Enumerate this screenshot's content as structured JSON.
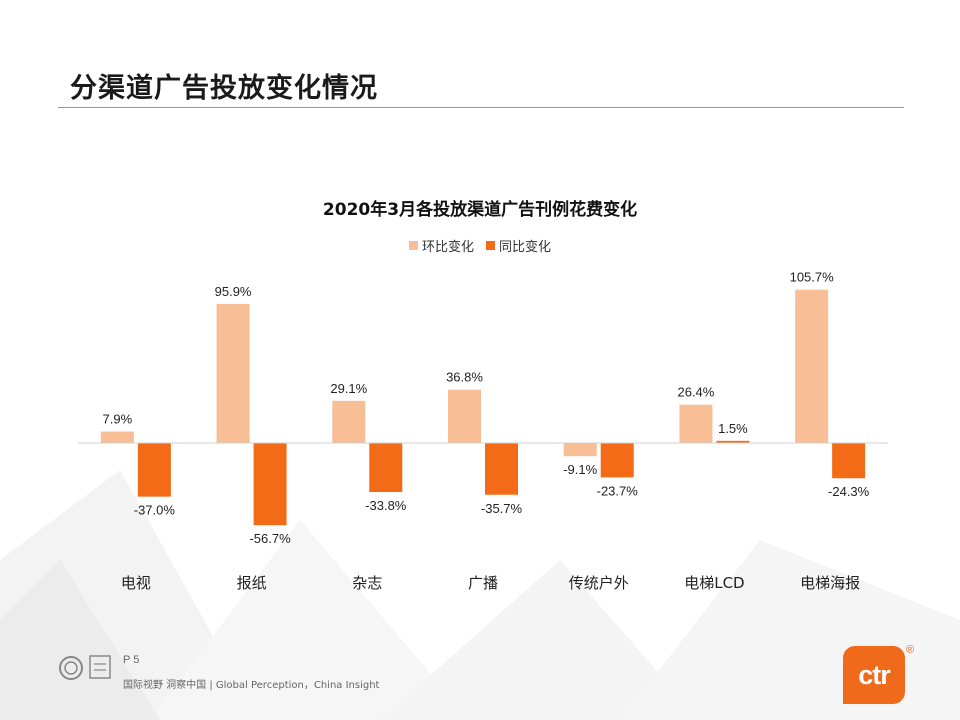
{
  "slide": {
    "title": "分渠道广告投放变化情况",
    "page_number": "P 5",
    "footer_text": "国际视野 洞察中国 | Global Perception，China Insight",
    "brand": "ctr",
    "brand_mark": "®"
  },
  "colors": {
    "mom": "#f8be96",
    "yoy": "#f36b16",
    "brand": "#f06a1c"
  },
  "chart_data": {
    "type": "bar",
    "title": "2020年3月各投放渠道广告刊例花费变化",
    "categories": [
      "电视",
      "报纸",
      "杂志",
      "广播",
      "传统户外",
      "电梯LCD",
      "电梯海报"
    ],
    "series": [
      {
        "name": "环比变化",
        "values": [
          7.9,
          95.9,
          29.1,
          36.8,
          -9.1,
          26.4,
          105.7
        ],
        "labels": [
          "7.9%",
          "95.9%",
          "29.1%",
          "36.8%",
          "-9.1%",
          "26.4%",
          "105.7%"
        ]
      },
      {
        "name": "同比变化",
        "values": [
          -37.0,
          -56.7,
          -33.8,
          -35.7,
          -23.7,
          1.5,
          -24.3
        ],
        "labels": [
          "-37.0%",
          "-56.7%",
          "-33.8%",
          "-35.7%",
          "-23.7%",
          "1.5%",
          "-24.3%"
        ]
      }
    ],
    "legend": "top-center",
    "grid": false,
    "unit": "%"
  }
}
